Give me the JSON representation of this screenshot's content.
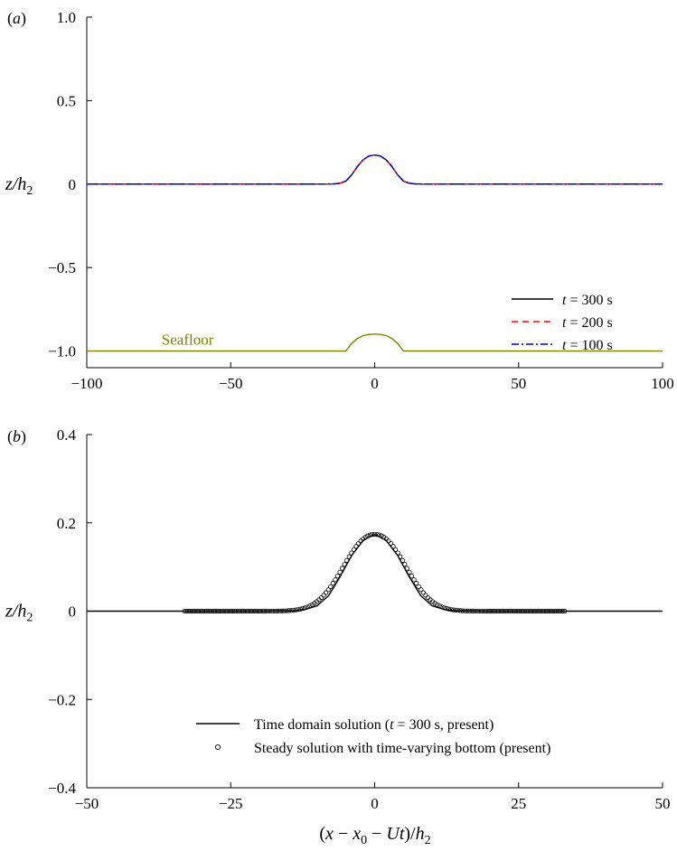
{
  "chart_data": [
    {
      "panel_label": "(a)",
      "type": "line",
      "ylabel": "z/h2",
      "xlim": [
        -100,
        100
      ],
      "ylim": [
        -1.1,
        1.0
      ],
      "xticks": [
        -100,
        -50,
        0,
        50,
        100
      ],
      "xtick_labels": [
        "−100",
        "−50",
        "0",
        "50",
        "100"
      ],
      "yticks": [
        -1.0,
        -0.5,
        0,
        0.5,
        1.0
      ],
      "ytick_labels": [
        "−1.0",
        "−0.5",
        "0",
        "0.5",
        "1.0"
      ],
      "annotation": "Seafloor",
      "grid": false,
      "legend_placement": "lower-right",
      "series": [
        {
          "name": "t = 300 s",
          "legend_italic": "t",
          "legend_rest": " = 300 s",
          "color": "#000000",
          "style": "solid",
          "x": [
            -100,
            -40,
            -20,
            -14,
            -12,
            -10,
            -8,
            -6,
            -4,
            -2,
            0,
            2,
            4,
            6,
            8,
            10,
            12,
            14,
            20,
            40,
            100
          ],
          "y": [
            0,
            0,
            0,
            0.001,
            0.005,
            0.018,
            0.055,
            0.105,
            0.145,
            0.168,
            0.174,
            0.168,
            0.145,
            0.105,
            0.055,
            0.018,
            0.005,
            0.001,
            0,
            0,
            0
          ]
        },
        {
          "name": "t = 200 s",
          "legend_italic": "t",
          "legend_rest": " = 200 s",
          "color": "#ff0000",
          "style": "dashed",
          "x": [
            -100,
            -40,
            -20,
            -14,
            -12,
            -10,
            -8,
            -6,
            -4,
            -2,
            0,
            2,
            4,
            6,
            8,
            10,
            12,
            14,
            20,
            40,
            100
          ],
          "y": [
            0,
            0,
            0,
            0.001,
            0.005,
            0.018,
            0.055,
            0.105,
            0.145,
            0.168,
            0.174,
            0.168,
            0.145,
            0.105,
            0.055,
            0.018,
            0.005,
            0.001,
            0,
            0,
            0
          ]
        },
        {
          "name": "t = 100 s",
          "legend_italic": "t",
          "legend_rest": " = 100 s",
          "color": "#0000cc",
          "style": "dashdot",
          "x": [
            -100,
            -40,
            -20,
            -14,
            -12,
            -10,
            -8,
            -6,
            -4,
            -2,
            0,
            2,
            4,
            6,
            8,
            10,
            12,
            14,
            20,
            40,
            100
          ],
          "y": [
            0,
            0,
            0,
            0.001,
            0.005,
            0.018,
            0.055,
            0.105,
            0.145,
            0.168,
            0.174,
            0.168,
            0.145,
            0.105,
            0.055,
            0.018,
            0.005,
            0.001,
            0,
            0,
            0
          ]
        },
        {
          "name": "",
          "color": "#808000",
          "style": "solid",
          "x": [
            -100,
            -10,
            -8,
            -6,
            -4,
            -2,
            0,
            2,
            4,
            6,
            8,
            10,
            100
          ],
          "y": [
            -1.0,
            -1.0,
            -0.955,
            -0.925,
            -0.908,
            -0.901,
            -0.899,
            -0.901,
            -0.908,
            -0.925,
            -0.955,
            -1.0,
            -1.0
          ]
        }
      ]
    },
    {
      "panel_label": "(b)",
      "type": "line",
      "xlabel": "(x − x0 − Ut)/h2",
      "ylabel": "z/h2",
      "xlim": [
        -50,
        50
      ],
      "ylim": [
        -0.4,
        0.4
      ],
      "xticks": [
        -50,
        -25,
        0,
        25,
        50
      ],
      "xtick_labels": [
        "−50",
        "−25",
        "0",
        "25",
        "50"
      ],
      "yticks": [
        -0.4,
        -0.2,
        0,
        0.2,
        0.4
      ],
      "ytick_labels": [
        "−0.4",
        "−0.2",
        "0",
        "0.2",
        "0.4"
      ],
      "grid": false,
      "legend_placement": "lower-right",
      "series": [
        {
          "name": "Time domain solution (t = 300 s, present)",
          "legend_before": "Time domain solution (",
          "legend_italic": "t",
          "legend_after": " = 300 s, present)",
          "color": "#000000",
          "style": "solid",
          "x": [
            -50,
            -20,
            -14,
            -12,
            -10,
            -8,
            -6,
            -4,
            -2,
            0,
            2,
            4,
            6,
            8,
            10,
            12,
            14,
            20,
            50
          ],
          "y": [
            0,
            0,
            0.001,
            0.004,
            0.012,
            0.035,
            0.078,
            0.126,
            0.16,
            0.174,
            0.16,
            0.126,
            0.078,
            0.035,
            0.012,
            0.004,
            0.001,
            0,
            0
          ]
        },
        {
          "name": "Steady solution with time-varying bottom (present)",
          "legend_before": "Steady solution with time-varying bottom (present)",
          "color": "#000000",
          "style": "markers",
          "x_range": [
            -33,
            33
          ],
          "n_points": 165,
          "x": [
            -33,
            -20,
            -14,
            -12,
            -10,
            -8,
            -6,
            -4,
            -2,
            0,
            2,
            4,
            6,
            8,
            10,
            12,
            14,
            20,
            33
          ],
          "y": [
            0,
            0,
            0.001,
            0.004,
            0.012,
            0.035,
            0.078,
            0.126,
            0.16,
            0.174,
            0.16,
            0.126,
            0.078,
            0.035,
            0.012,
            0.004,
            0.001,
            0,
            0
          ]
        }
      ]
    }
  ]
}
